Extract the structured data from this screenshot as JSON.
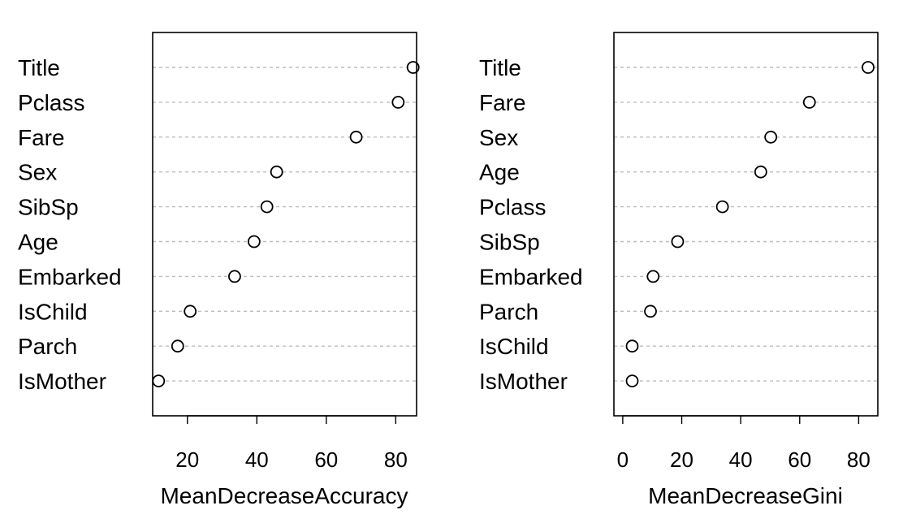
{
  "chart_data": [
    {
      "type": "scatter",
      "subtype": "dotchart",
      "xlabel": "MeanDecreaseAccuracy",
      "ylabel": "",
      "categories": [
        "Title",
        "Pclass",
        "Fare",
        "Sex",
        "SibSp",
        "Age",
        "Embarked",
        "IsChild",
        "Parch",
        "IsMother"
      ],
      "values": [
        85.0,
        80.7,
        68.6,
        45.7,
        42.9,
        39.2,
        33.6,
        20.8,
        17.2,
        11.7
      ],
      "xlim": [
        10,
        86
      ],
      "xticks": [
        20,
        40,
        60,
        80
      ],
      "grid": "dashed horizontal guide lines"
    },
    {
      "type": "scatter",
      "subtype": "dotchart",
      "xlabel": "MeanDecreaseGini",
      "ylabel": "",
      "categories": [
        "Title",
        "Fare",
        "Sex",
        "Age",
        "Pclass",
        "SibSp",
        "Embarked",
        "Parch",
        "IsChild",
        "IsMother"
      ],
      "values": [
        83.2,
        63.3,
        50.2,
        46.8,
        33.8,
        18.6,
        10.3,
        9.4,
        3.2,
        3.2
      ],
      "xlim": [
        -3,
        86.5
      ],
      "xticks": [
        0,
        20,
        40,
        60,
        80
      ],
      "grid": "dashed horizontal guide lines"
    }
  ]
}
